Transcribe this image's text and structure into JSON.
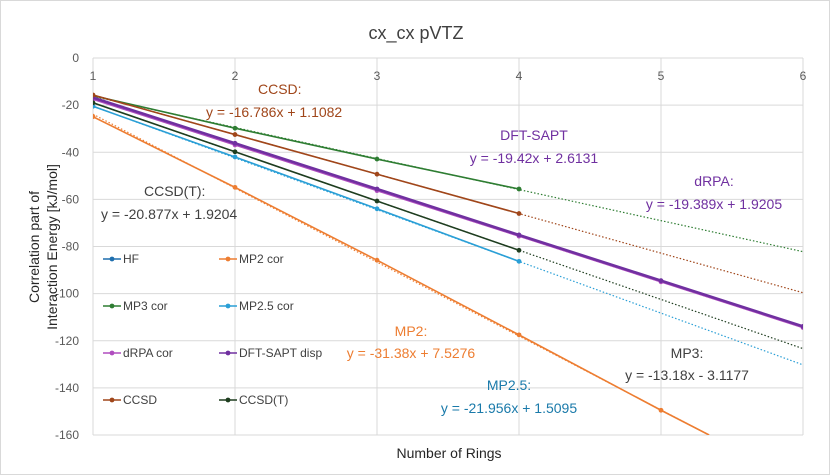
{
  "chart_data": {
    "type": "line",
    "title": "cx_cx pVTZ",
    "xlabel": "Number of Rings",
    "ylabel": "Correlation part of\nInteraction Energy  [kJ/mol]",
    "xlim": [
      1,
      6
    ],
    "ylim": [
      -160,
      0
    ],
    "xticks": [
      "1",
      "2",
      "3",
      "4",
      "5",
      "6"
    ],
    "yticks": [
      "0",
      "-20",
      "-40",
      "-60",
      "-80",
      "-100",
      "-120",
      "-140",
      "-160"
    ],
    "grid": true,
    "legend_position": "lower-left",
    "series": [
      {
        "name": "HF",
        "color": "#1f6fae",
        "x": [],
        "y": []
      },
      {
        "name": "MP2 cor",
        "color": "#ed7d31",
        "x": [
          1,
          2,
          3,
          4,
          5
        ],
        "y": [
          -24.9,
          -54.9,
          -85.8,
          -117.5,
          -149.5
        ]
      },
      {
        "name": "MP3 cor",
        "color": "#2e7d32",
        "x": [
          1,
          2,
          3,
          4
        ],
        "y": [
          -16.0,
          -29.8,
          -42.9,
          -55.6
        ]
      },
      {
        "name": "MP2.5 cor",
        "color": "#2a9fd6",
        "x": [
          1,
          2,
          3,
          4
        ],
        "y": [
          -20.5,
          -42.0,
          -64.0,
          -86.3
        ]
      },
      {
        "name": "dRPA cor",
        "color": "#b04dbf",
        "x": [
          1,
          2,
          3,
          4,
          5,
          6
        ],
        "y": [
          -17.5,
          -36.9,
          -56.3,
          -75.6,
          -95.0,
          -114.4
        ]
      },
      {
        "name": "DFT-SAPT disp",
        "color": "#7030a0",
        "x": [
          1,
          2,
          3,
          4,
          5,
          6
        ],
        "y": [
          -16.8,
          -36.2,
          -55.6,
          -75.1,
          -94.5,
          -113.9
        ]
      },
      {
        "name": "CCSD",
        "color": "#a0461a",
        "x": [
          1,
          2,
          3,
          4
        ],
        "y": [
          -15.7,
          -32.5,
          -49.3,
          -66.0
        ]
      },
      {
        "name": "CCSD(T)",
        "color": "#1e3d1f",
        "x": [
          1,
          2,
          3,
          4
        ],
        "y": [
          -19.0,
          -39.8,
          -60.7,
          -81.6
        ]
      }
    ],
    "trendlines": [
      {
        "label": "CCSD:",
        "equation": "y = -16.786x + 1.1082",
        "slope": -16.786,
        "intercept": 1.1082,
        "color": "#a0461a"
      },
      {
        "label": "DFT-SAPT",
        "equation": "y = -19.42x + 2.6131",
        "slope": -19.42,
        "intercept": 2.6131,
        "color": "#7030a0"
      },
      {
        "label": "dRPA:",
        "equation": "y = -19.389x + 1.9205",
        "slope": -19.389,
        "intercept": 1.9205,
        "color": "#7030a0"
      },
      {
        "label": "CCSD(T):",
        "equation": "y = -20.877x + 1.9204",
        "slope": -20.877,
        "intercept": 1.9204,
        "color": "#404040"
      },
      {
        "label": "MP2:",
        "equation": "y = -31.38x + 7.5276",
        "slope": -31.38,
        "intercept": 7.5276,
        "color": "#ed7d31"
      },
      {
        "label": "MP3:",
        "equation": "y = -13.18x - 3.1177",
        "slope": -13.18,
        "intercept": -3.1177,
        "color": "#404040"
      },
      {
        "label": "MP2.5:",
        "equation": "y = -21.956x + 1.5095",
        "slope": -21.956,
        "intercept": 1.5095,
        "color": "#1a7aaa"
      }
    ]
  }
}
